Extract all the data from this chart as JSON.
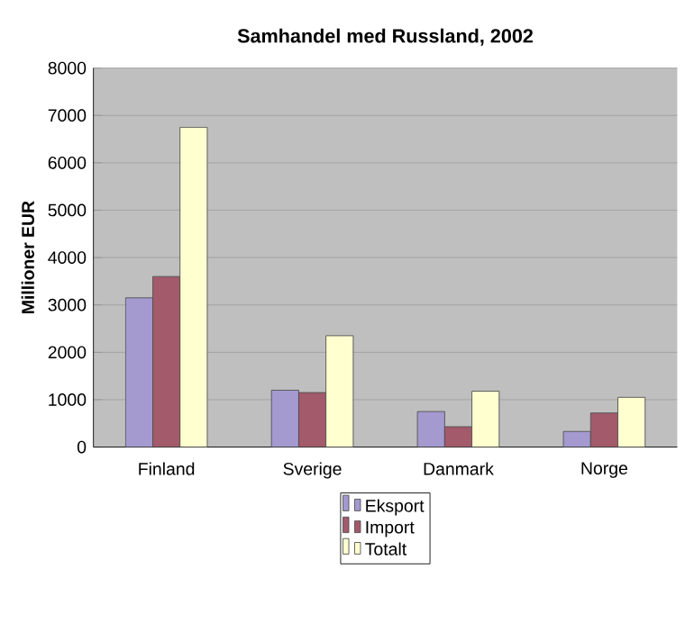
{
  "chart_data": {
    "type": "bar",
    "title": "Samhandel med Russland, 2002",
    "ylabel": "Millioner EUR",
    "categories": [
      "Finland",
      "Sverige",
      "Danmark",
      "Norge"
    ],
    "series": [
      {
        "name": "Eksport",
        "color": "#a49ad0",
        "values": [
          3150,
          1200,
          750,
          330
        ]
      },
      {
        "name": "Import",
        "color": "#a35a6a",
        "values": [
          3600,
          1150,
          430,
          720
        ]
      },
      {
        "name": "Totalt",
        "color": "#ffffd0",
        "values": [
          6750,
          2350,
          1180,
          1050
        ]
      }
    ],
    "ylim": [
      0,
      8000
    ],
    "yticks": [
      0,
      1000,
      2000,
      3000,
      4000,
      5000,
      6000,
      7000,
      8000
    ],
    "grid": "y",
    "legend": "bottom"
  }
}
